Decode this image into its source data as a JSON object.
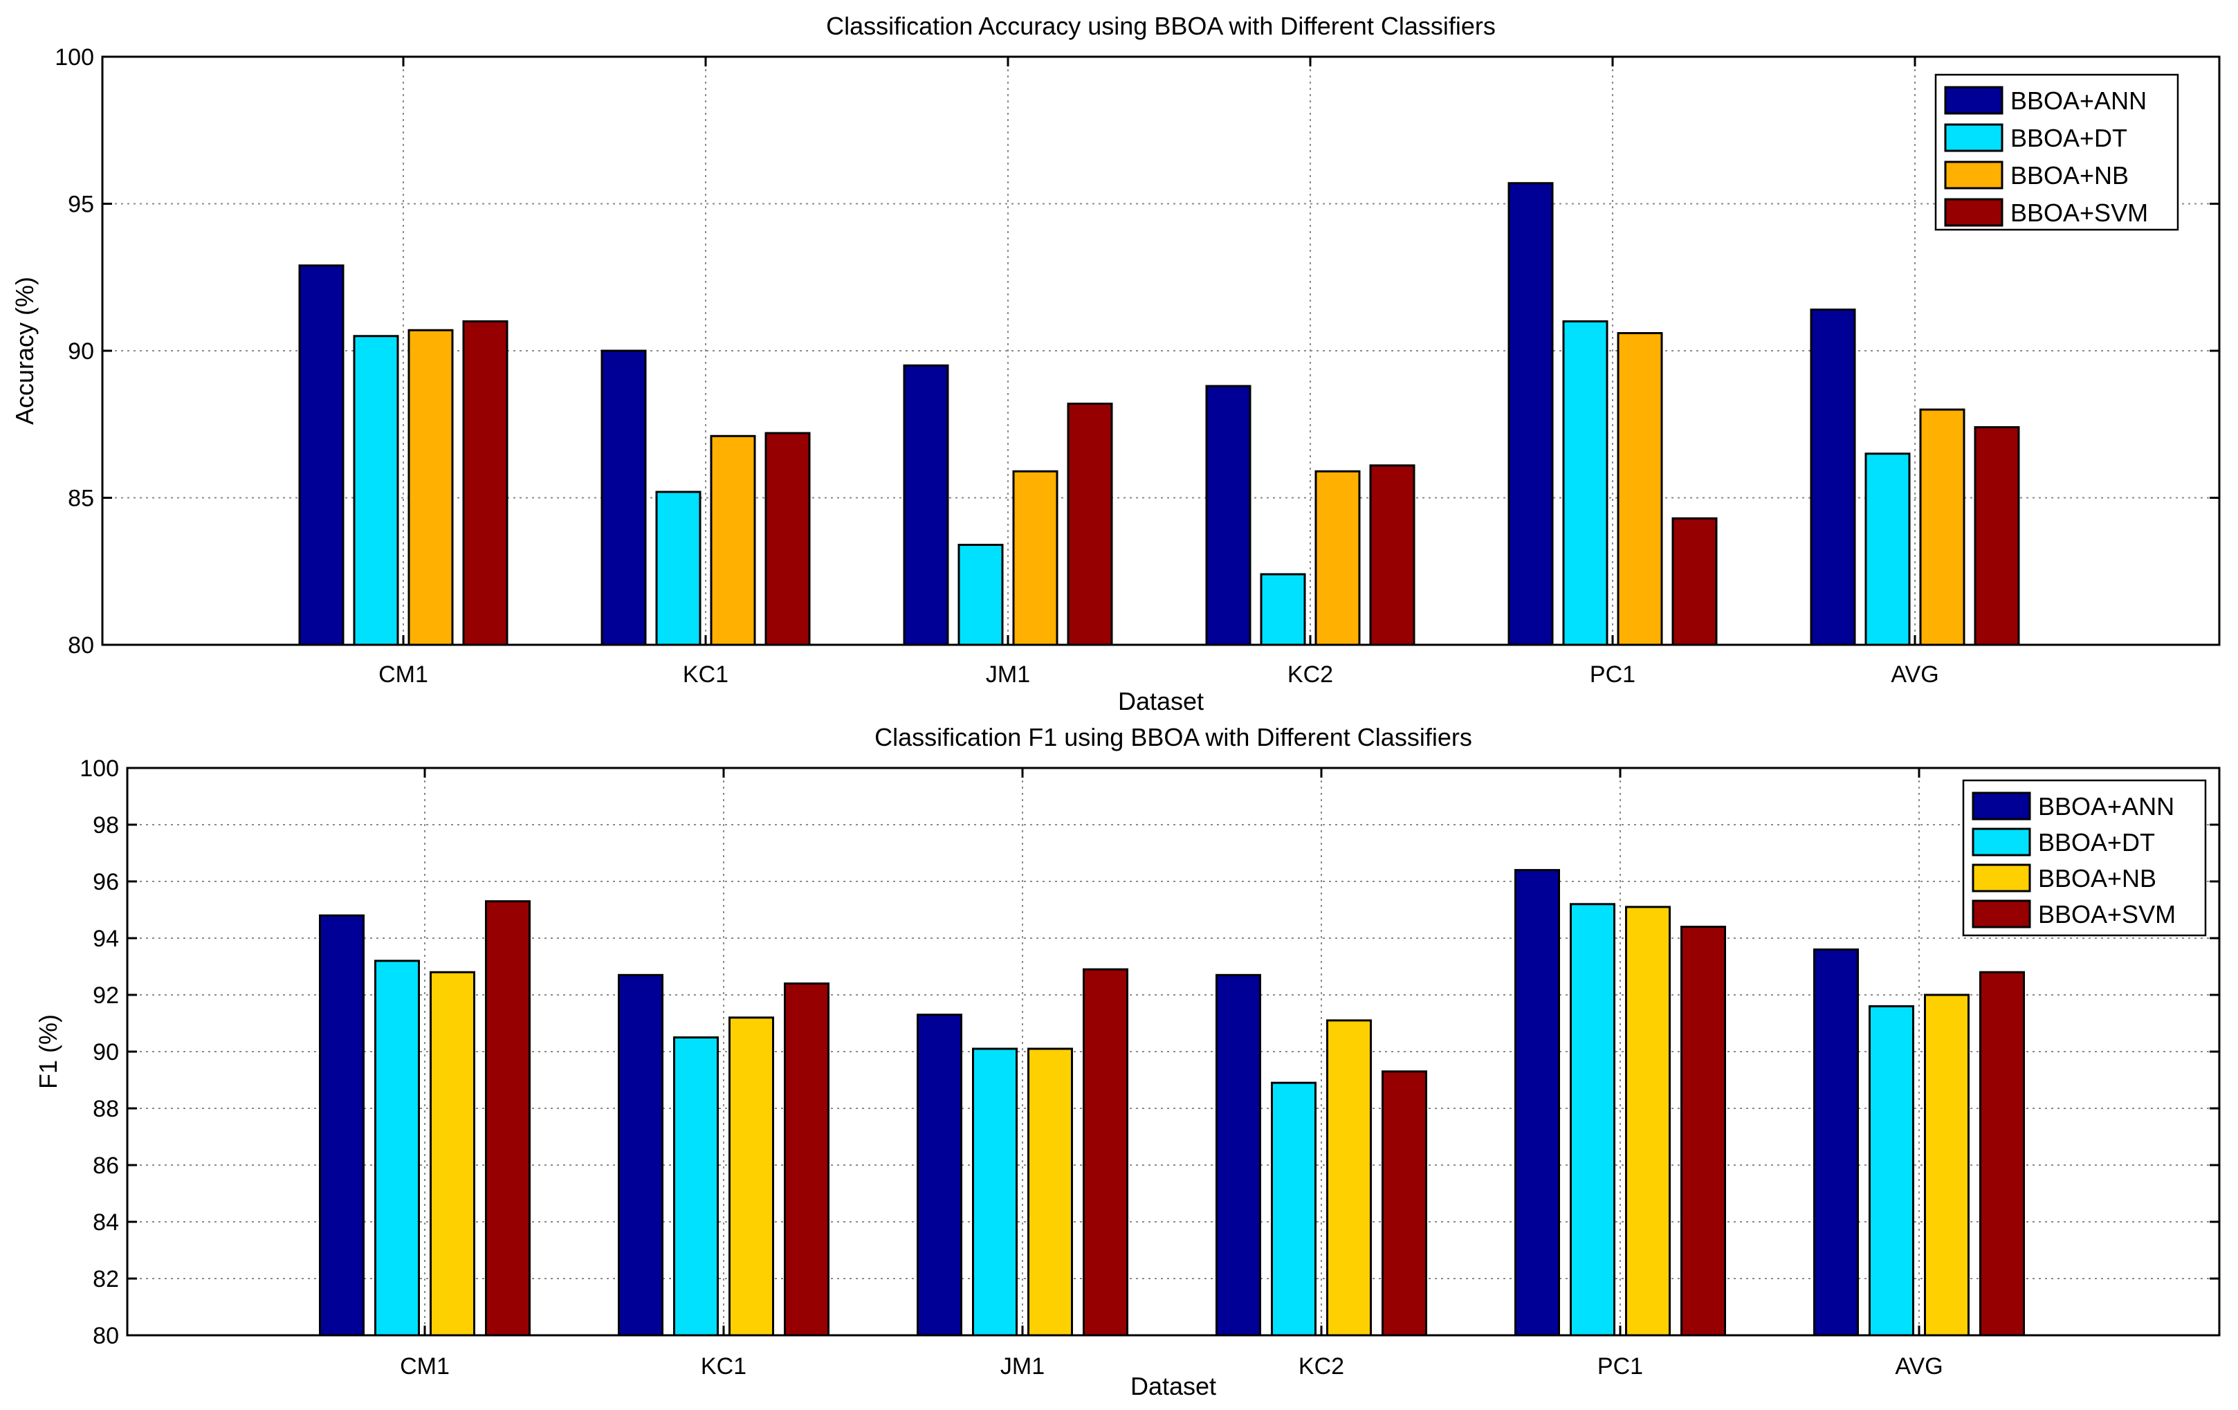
{
  "chart_data": [
    {
      "type": "bar",
      "title": "Classification Accuracy using BBOA with Different Classifiers",
      "xlabel": "Dataset",
      "ylabel": "Accuracy (%)",
      "ylim": [
        80,
        100
      ],
      "yticks": [
        80,
        85,
        90,
        95,
        100
      ],
      "grid": true,
      "legend_position": "top-right",
      "categories": [
        "CM1",
        "KC1",
        "JM1",
        "KC2",
        "PC1",
        "AVG"
      ],
      "series": [
        {
          "name": "BBOA+ANN",
          "color": "#000096",
          "values": [
            92.9,
            90.0,
            89.5,
            88.8,
            95.7,
            91.4
          ]
        },
        {
          "name": "BBOA+DT",
          "color": "#00E1FF",
          "values": [
            90.5,
            85.2,
            83.4,
            82.4,
            91.0,
            86.5
          ]
        },
        {
          "name": "BBOA+NB",
          "color": "#FFB000",
          "values": [
            90.7,
            87.1,
            85.9,
            85.9,
            90.6,
            88.0
          ]
        },
        {
          "name": "BBOA+SVM",
          "color": "#960000",
          "values": [
            91.0,
            87.2,
            88.2,
            86.1,
            84.3,
            87.4
          ]
        }
      ]
    },
    {
      "type": "bar",
      "title": "Classification F1 using BBOA with Different Classifiers",
      "xlabel": "Dataset",
      "ylabel": "F1 (%)",
      "ylim": [
        80,
        100
      ],
      "yticks": [
        80,
        82,
        84,
        86,
        88,
        90,
        92,
        94,
        96,
        98,
        100
      ],
      "grid": true,
      "legend_position": "top-right",
      "categories": [
        "CM1",
        "KC1",
        "JM1",
        "KC2",
        "PC1",
        "AVG"
      ],
      "series": [
        {
          "name": "BBOA+ANN",
          "color": "#000096",
          "values": [
            94.8,
            92.7,
            91.3,
            92.7,
            96.4,
            93.6
          ]
        },
        {
          "name": "BBOA+DT",
          "color": "#00E1FF",
          "values": [
            93.2,
            90.5,
            90.1,
            88.9,
            95.2,
            91.6
          ]
        },
        {
          "name": "BBOA+NB",
          "color": "#FFD000",
          "values": [
            92.8,
            91.2,
            90.1,
            91.1,
            95.1,
            92.0
          ]
        },
        {
          "name": "BBOA+SVM",
          "color": "#960000",
          "values": [
            95.3,
            92.4,
            92.9,
            89.3,
            94.4,
            92.8
          ]
        }
      ]
    }
  ]
}
